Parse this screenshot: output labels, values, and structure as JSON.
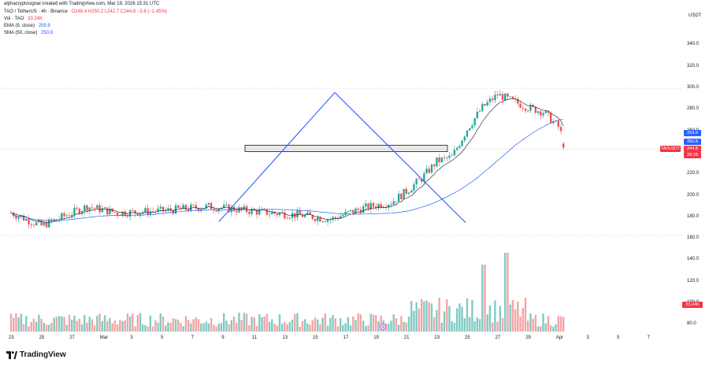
{
  "header": {
    "line1": "alphacryptosignal created with TradingView.com, Mar 19, 2026 15:31 UTC",
    "line2_symbol": "TAO / TetherUS · 4h · Binance",
    "line2_ohlc": "O248.4 H250.2 L242.7 C244.8 −3.6 (−1.45%)",
    "vol_label": "Vol · TAO",
    "vol_value": "33.24K",
    "ema_label": "EMA (9, close)",
    "ema_value": "259.9",
    "sma_label": "SMA (50, close)",
    "sma_value": "250.8"
  },
  "price_axis": {
    "currency": "USDT",
    "ticks": [
      "340.0",
      "320.0",
      "300.0",
      "280.0",
      "260.0",
      "240.0",
      "220.0",
      "200.0",
      "180.0",
      "160.0",
      "140.0",
      "120.0",
      "100.0",
      "80.0"
    ],
    "tags": {
      "ema": "259.9",
      "sma": "250.8",
      "close": "244.8",
      "countdown": "28:28",
      "symbol": "TAOUSDT",
      "volume": "33.24K"
    }
  },
  "time_axis": {
    "labels": [
      "23",
      "25",
      "27",
      "Mar",
      "3",
      "5",
      "7",
      "9",
      "11",
      "13",
      "15",
      "17",
      "19",
      "21",
      "23",
      "25",
      "27",
      "29",
      "Apr",
      "3",
      "5",
      "7"
    ]
  },
  "brand": {
    "name": "TradingView"
  },
  "colors": {
    "up": "#26a69a",
    "down": "#ef5350",
    "ema": "#131722",
    "sma": "#2962ff",
    "trendline": "#2962ff",
    "zone_fill": "#e0e0e0"
  },
  "chart_data": {
    "type": "candlestick",
    "timeframe": "4h",
    "ylim": [
      80,
      350
    ],
    "annotations": {
      "support_zone": [
        241,
        247
      ],
      "dotted_levels": [
        300,
        243.5,
        163
      ],
      "trend_up": {
        "from": [
          "Mar 7",
          176
        ],
        "to": [
          "Mar 16",
          296
        ]
      },
      "trend_down": {
        "from": [
          "Mar 16",
          296
        ],
        "to": [
          "Mar 24",
          175
        ]
      }
    },
    "last_close": 244.8,
    "ema9_last": 259.9,
    "sma50_last": 250.8,
    "last_volume": "33.24K"
  }
}
